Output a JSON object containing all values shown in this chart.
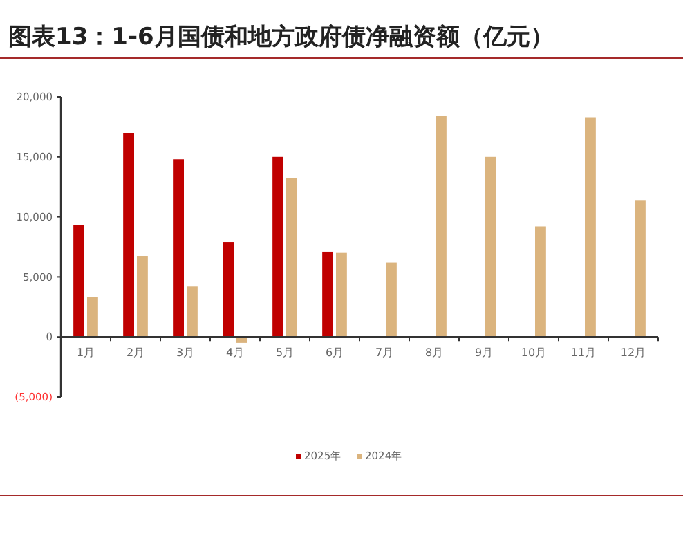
{
  "chart_data": {
    "type": "bar",
    "title": "图表13：1-6月国债和地方政府债净融资额（亿元）",
    "categories": [
      "1月",
      "2月",
      "3月",
      "4月",
      "5月",
      "6月",
      "7月",
      "8月",
      "9月",
      "10月",
      "11月",
      "12月"
    ],
    "series": [
      {
        "name": "2025年",
        "color": "#c00000",
        "values": [
          9300,
          17000,
          14800,
          7900,
          15000,
          7100,
          null,
          null,
          null,
          null,
          null,
          null
        ]
      },
      {
        "name": "2024年",
        "color": "#dbb47e",
        "values": [
          3300,
          6750,
          4200,
          -500,
          13250,
          7000,
          6200,
          18400,
          15000,
          9200,
          18300,
          11400
        ]
      }
    ],
    "ylim": [
      -5000,
      20000
    ],
    "yticks": [
      {
        "value": -5000,
        "label": "(5,000)"
      },
      {
        "value": 0,
        "label": "0"
      },
      {
        "value": 5000,
        "label": "5,000"
      },
      {
        "value": 10000,
        "label": "10,000"
      },
      {
        "value": 15000,
        "label": "15,000"
      },
      {
        "value": 20000,
        "label": "20,000"
      }
    ],
    "grid": false,
    "legend": "bottom"
  }
}
